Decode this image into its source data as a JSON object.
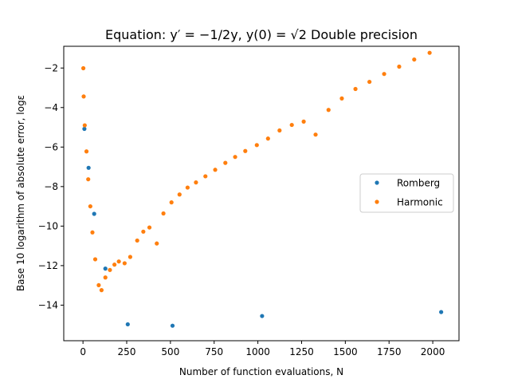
{
  "chart_data": {
    "type": "scatter",
    "title": "Equation: y′ = −1/2y, y(0) = √2 Double precision",
    "xlabel": "Number of function evaluations, N",
    "ylabel": "Base 10 logarithm of absolute error, logε",
    "xlim": [
      -110,
      2150
    ],
    "ylim": [
      -15.8,
      -0.9
    ],
    "xticks": [
      0,
      250,
      500,
      750,
      1000,
      1250,
      1500,
      1750,
      2000
    ],
    "yticks": [
      -14,
      -12,
      -10,
      -8,
      -6,
      -4,
      -2
    ],
    "xtick_labels": [
      "0",
      "250",
      "500",
      "750",
      "1000",
      "1250",
      "1500",
      "1750",
      "2000"
    ],
    "ytick_labels": [
      "−14",
      "−12",
      "−10",
      "−8",
      "−6",
      "−4",
      "−2"
    ],
    "grid": false,
    "legend_position": "center-right",
    "series": [
      {
        "name": "Romberg",
        "color": "#1f77b4",
        "points": [
          [
            8,
            -5.08
          ],
          [
            32,
            -7.05
          ],
          [
            64,
            -9.38
          ],
          [
            128,
            -12.15
          ],
          [
            256,
            -14.97
          ],
          [
            512,
            -15.04
          ],
          [
            1024,
            -14.55
          ],
          [
            2048,
            -14.35
          ]
        ]
      },
      {
        "name": "Harmonic",
        "color": "#ff7f0e",
        "points": [
          [
            2,
            -2.01
          ],
          [
            4,
            -3.44
          ],
          [
            10,
            -4.9
          ],
          [
            20,
            -6.22
          ],
          [
            30,
            -7.63
          ],
          [
            42,
            -9.0
          ],
          [
            54,
            -10.32
          ],
          [
            70,
            -11.68
          ],
          [
            90,
            -12.99
          ],
          [
            106,
            -13.24
          ],
          [
            128,
            -12.6
          ],
          [
            154,
            -12.22
          ],
          [
            180,
            -11.95
          ],
          [
            205,
            -11.79
          ],
          [
            238,
            -11.88
          ],
          [
            270,
            -11.56
          ],
          [
            310,
            -10.73
          ],
          [
            345,
            -10.28
          ],
          [
            380,
            -10.07
          ],
          [
            422,
            -10.88
          ],
          [
            460,
            -9.36
          ],
          [
            506,
            -8.8
          ],
          [
            552,
            -8.4
          ],
          [
            598,
            -8.05
          ],
          [
            646,
            -7.79
          ],
          [
            700,
            -7.48
          ],
          [
            756,
            -7.15
          ],
          [
            814,
            -6.8
          ],
          [
            870,
            -6.5
          ],
          [
            928,
            -6.2
          ],
          [
            994,
            -5.9
          ],
          [
            1058,
            -5.57
          ],
          [
            1124,
            -5.16
          ],
          [
            1194,
            -4.88
          ],
          [
            1262,
            -4.71
          ],
          [
            1330,
            -5.37
          ],
          [
            1404,
            -4.12
          ],
          [
            1480,
            -3.54
          ],
          [
            1558,
            -3.06
          ],
          [
            1638,
            -2.7
          ],
          [
            1722,
            -2.3
          ],
          [
            1808,
            -1.93
          ],
          [
            1894,
            -1.57
          ],
          [
            1982,
            -1.23
          ]
        ]
      }
    ]
  }
}
